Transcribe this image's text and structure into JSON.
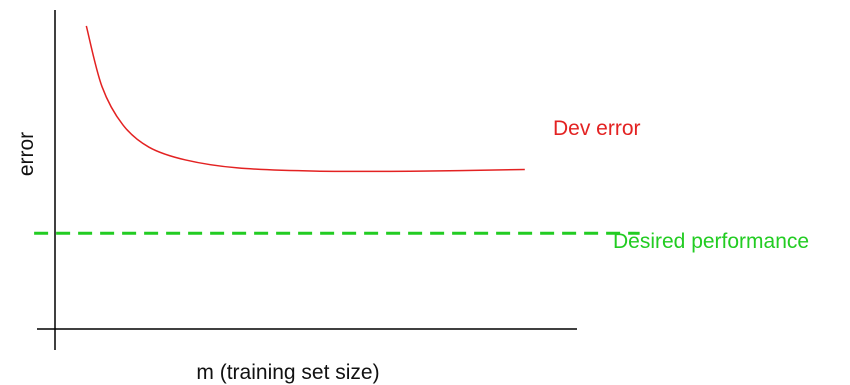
{
  "chart_data": {
    "type": "line",
    "xlabel": "m (training set size)",
    "ylabel": "error",
    "series": [
      {
        "name": "Dev error",
        "color": "#e32222",
        "style": "solid",
        "points": [
          [
            0.06,
            0.95
          ],
          [
            0.09,
            0.76
          ],
          [
            0.13,
            0.64
          ],
          [
            0.18,
            0.57
          ],
          [
            0.25,
            0.53
          ],
          [
            0.35,
            0.505
          ],
          [
            0.5,
            0.495
          ],
          [
            0.7,
            0.495
          ],
          [
            0.9,
            0.5
          ]
        ]
      },
      {
        "name": "Desired performance",
        "color": "#22cc22",
        "style": "dashed",
        "points": [
          [
            -0.04,
            0.3
          ],
          [
            1.12,
            0.3
          ]
        ]
      }
    ],
    "xlim": [
      0,
      1
    ],
    "ylim": [
      0,
      1
    ],
    "grid": false,
    "ticks": false
  }
}
